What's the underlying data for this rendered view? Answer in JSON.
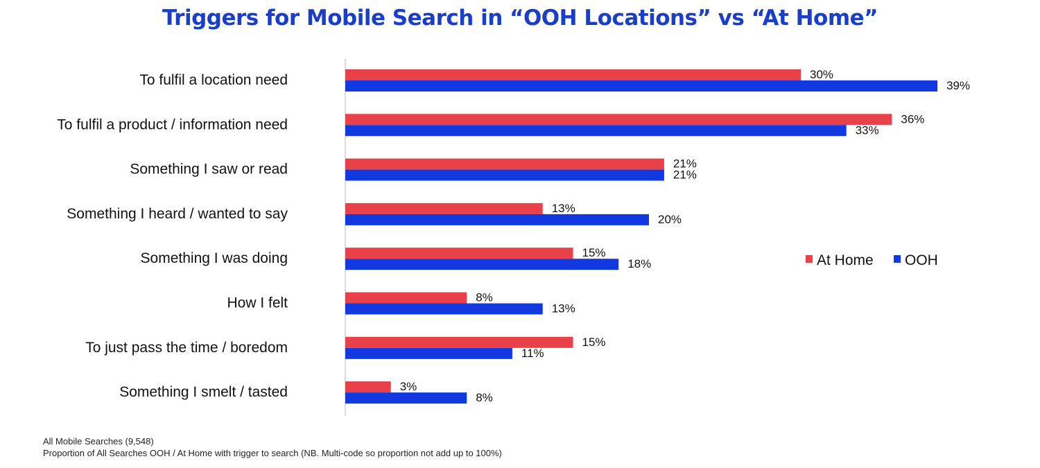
{
  "chart_data": {
    "type": "bar",
    "orientation": "horizontal",
    "title": "Triggers for Mobile Search in “OOH Locations” vs “At Home”",
    "categories": [
      "To fulfil a location need",
      "To fulfil a product / information need",
      "Something I saw or read",
      "Something I heard / wanted to say",
      "Something I was doing",
      "How I felt",
      "To just pass the time / boredom",
      "Something I smelt / tasted"
    ],
    "series": [
      {
        "name": "At Home",
        "color": "#e8414a",
        "values": [
          30,
          36,
          21,
          13,
          15,
          8,
          15,
          3
        ]
      },
      {
        "name": "OOH",
        "color": "#1238e0",
        "values": [
          39,
          33,
          21,
          20,
          18,
          13,
          11,
          8
        ]
      }
    ],
    "value_suffix": "%",
    "xlim": [
      0,
      40
    ],
    "grid": false,
    "legend": "right"
  },
  "footnote": {
    "line1": "All Mobile Searches (9,548)",
    "line2": "Proportion of All Searches OOH / At Home with trigger to search (NB. Multi-code so proportion not add up to 100%)"
  }
}
